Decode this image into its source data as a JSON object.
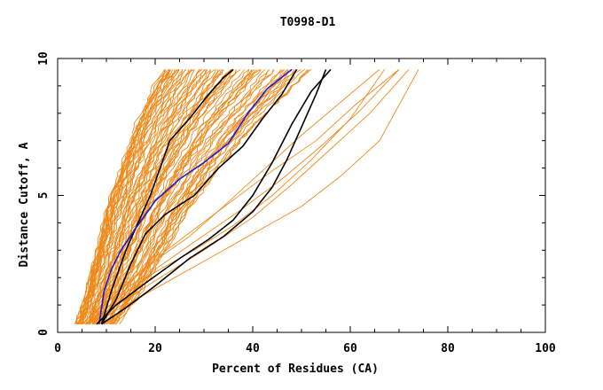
{
  "chart_data": {
    "type": "line",
    "title": "T0998-D1",
    "xlabel": "Percent of Residues (CA)",
    "ylabel": "Distance Cutoff, A",
    "xlim": [
      0,
      100
    ],
    "ylim": [
      0,
      10
    ],
    "x_ticks": [
      "0",
      "20",
      "40",
      "60",
      "80",
      "100"
    ],
    "y_ticks": [
      "0",
      "5",
      "10"
    ],
    "grid": false,
    "legend": "none",
    "colors": {
      "background_models": "#ee8a1c",
      "highlight_black": "#000000",
      "highlight_blue": "#1a1acc",
      "frame": "#000000"
    },
    "background_band": {
      "description_count": 80,
      "left_edge": {
        "x": [
          4,
          6,
          8,
          10,
          13,
          16,
          19,
          22
        ],
        "y": [
          0.3,
          1.5,
          3.0,
          4.5,
          6.0,
          7.5,
          8.7,
          9.6
        ]
      },
      "right_edge": {
        "x": [
          12,
          17,
          22,
          27,
          33,
          40,
          47,
          52
        ],
        "y": [
          0.3,
          1.5,
          3.0,
          4.5,
          6.0,
          7.5,
          8.7,
          9.6
        ]
      }
    },
    "outlier_orange_series": [
      {
        "x": [
          6,
          12,
          20,
          28,
          36,
          44,
          52,
          60,
          67
        ],
        "y": [
          0.3,
          1.2,
          2.2,
          3.0,
          3.9,
          5.0,
          6.3,
          7.8,
          9.6
        ]
      },
      {
        "x": [
          7,
          14,
          23,
          32,
          41,
          50,
          58,
          66,
          74
        ],
        "y": [
          0.3,
          1.0,
          1.9,
          2.8,
          3.7,
          4.6,
          5.7,
          7.0,
          9.6
        ]
      },
      {
        "x": [
          6,
          13,
          21,
          30,
          40,
          48,
          56,
          64,
          72
        ],
        "y": [
          0.3,
          1.1,
          2.0,
          3.0,
          4.2,
          5.4,
          6.7,
          8.0,
          9.6
        ]
      },
      {
        "x": [
          5,
          11,
          18,
          26,
          35,
          44,
          53,
          61,
          70
        ],
        "y": [
          0.3,
          1.3,
          2.4,
          3.5,
          4.7,
          5.9,
          7.0,
          8.3,
          9.6
        ]
      },
      {
        "x": [
          6,
          12,
          19,
          27,
          34,
          42,
          50,
          58,
          66
        ],
        "y": [
          0.3,
          1.4,
          2.5,
          3.5,
          4.6,
          5.9,
          7.2,
          8.4,
          9.6
        ]
      },
      {
        "x": [
          7,
          13,
          20,
          28,
          37,
          46,
          54,
          62,
          70
        ],
        "y": [
          0.3,
          1.2,
          2.3,
          3.3,
          4.4,
          5.6,
          6.8,
          8.1,
          9.6
        ]
      }
    ],
    "series": [
      {
        "color": "black",
        "x": [
          9,
          11,
          14,
          17,
          19,
          21,
          23,
          27,
          31,
          34,
          36
        ],
        "y": [
          0.3,
          1.5,
          3.0,
          4.2,
          5.0,
          6.0,
          7.0,
          7.8,
          8.7,
          9.3,
          9.6
        ]
      },
      {
        "color": "black",
        "x": [
          9,
          12,
          15,
          18,
          22,
          28,
          33,
          38,
          42,
          46,
          49
        ],
        "y": [
          0.3,
          1.2,
          2.5,
          3.6,
          4.3,
          5.0,
          6.0,
          6.8,
          7.8,
          8.7,
          9.6
        ]
      },
      {
        "color": "blue",
        "x": [
          8.5,
          9.5,
          11,
          13,
          16,
          20,
          25,
          30,
          35,
          39,
          43,
          48
        ],
        "y": [
          0.3,
          1.5,
          2.3,
          3.0,
          3.8,
          4.8,
          5.6,
          6.2,
          6.9,
          8.0,
          8.9,
          9.6
        ]
      },
      {
        "color": "black",
        "x": [
          8,
          12,
          18,
          25,
          31,
          36,
          40,
          44,
          48,
          52,
          56
        ],
        "y": [
          0.3,
          1.0,
          1.8,
          2.7,
          3.4,
          4.1,
          5.0,
          6.2,
          7.6,
          8.8,
          9.6
        ]
      },
      {
        "color": "black",
        "x": [
          9,
          14,
          20,
          27,
          34,
          40,
          44,
          47,
          50,
          53,
          55
        ],
        "y": [
          0.3,
          0.9,
          1.7,
          2.7,
          3.5,
          4.4,
          5.3,
          6.3,
          7.5,
          8.7,
          9.6
        ]
      }
    ]
  }
}
